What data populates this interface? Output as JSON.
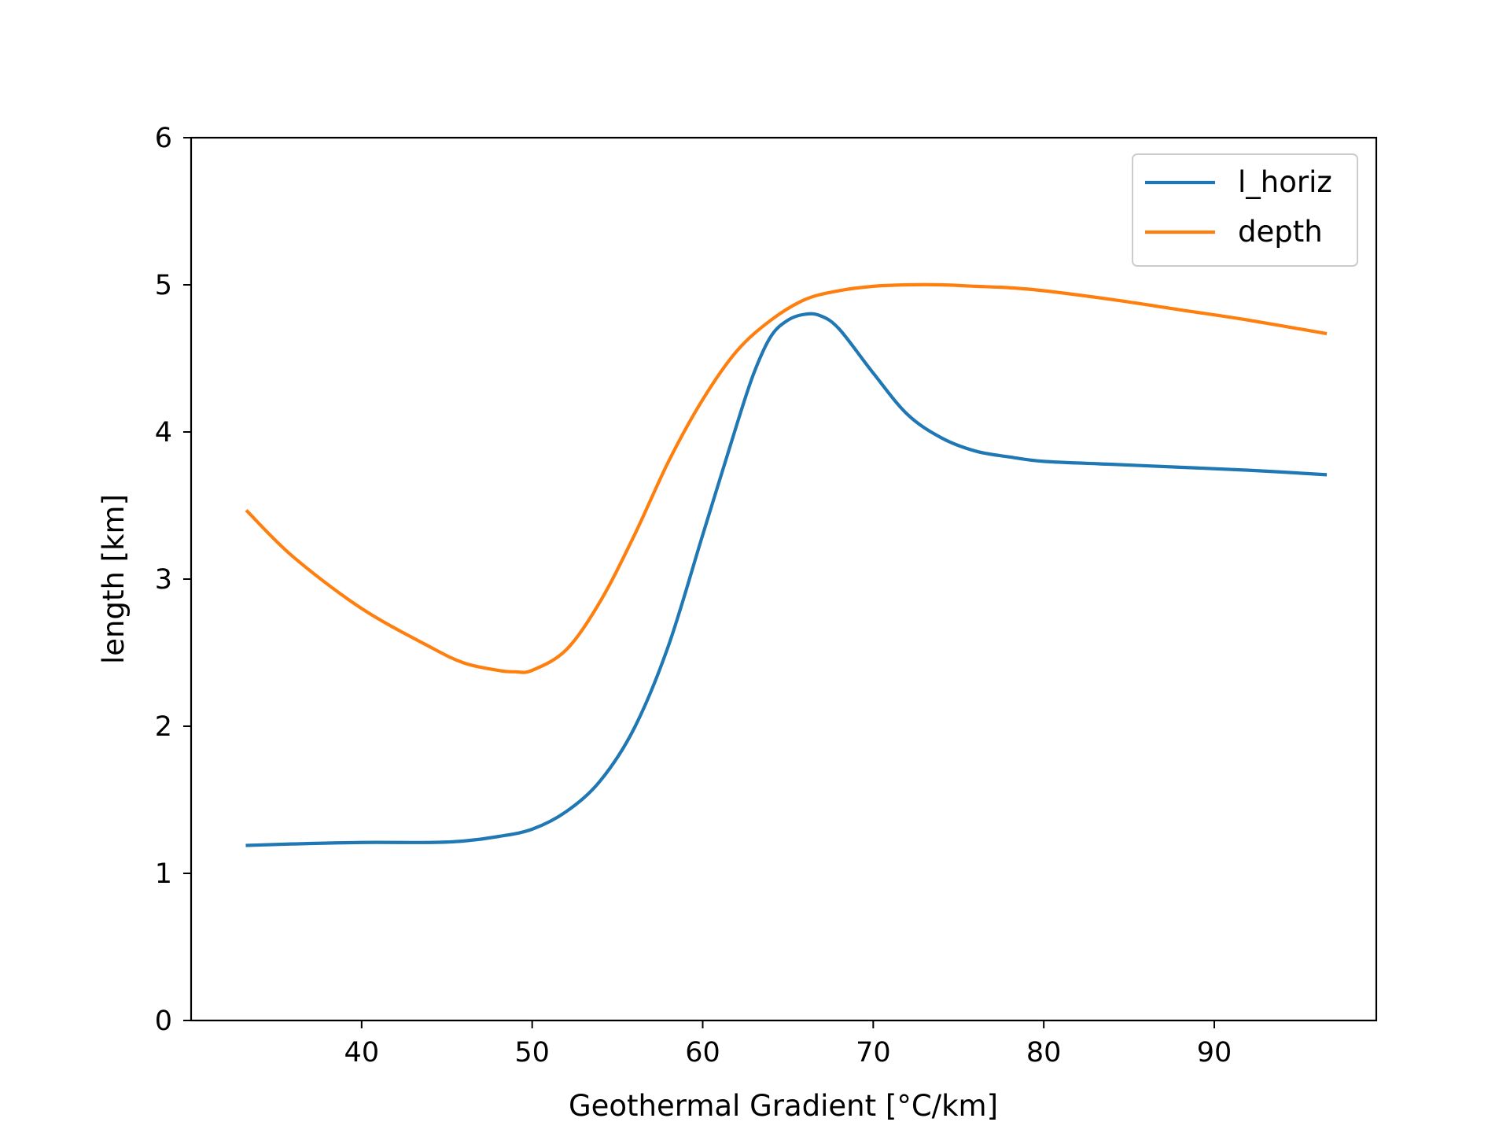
{
  "chart_data": {
    "type": "line",
    "title": "",
    "xlabel": "Geothermal Gradient [°C/km]",
    "ylabel": "length [km]",
    "xlim": [
      30,
      99.5
    ],
    "ylim": [
      0,
      6
    ],
    "xticks": [
      40,
      50,
      60,
      70,
      80,
      90
    ],
    "yticks": [
      0,
      1,
      2,
      3,
      4,
      5,
      6
    ],
    "grid": false,
    "legend_position": "top-right",
    "series": [
      {
        "name": "l_horiz",
        "color": "#1f77b4",
        "x": [
          33.3,
          36,
          40,
          44,
          46,
          48,
          50,
          52,
          54,
          56,
          58,
          60,
          62,
          63,
          64,
          65,
          66,
          66.9,
          68,
          70,
          72,
          74,
          76,
          78,
          80,
          84,
          88,
          92,
          96.5
        ],
        "y": [
          1.19,
          1.2,
          1.21,
          1.21,
          1.22,
          1.25,
          1.3,
          1.42,
          1.63,
          1.99,
          2.55,
          3.3,
          4.05,
          4.4,
          4.65,
          4.76,
          4.8,
          4.79,
          4.7,
          4.4,
          4.12,
          3.96,
          3.87,
          3.83,
          3.8,
          3.78,
          3.76,
          3.74,
          3.71
        ]
      },
      {
        "name": "depth",
        "color": "#ff7f0e",
        "x": [
          33.3,
          36,
          40,
          44,
          46,
          48,
          49,
          50,
          52,
          54,
          56,
          58,
          60,
          62,
          64,
          66,
          68,
          70,
          72,
          74,
          76,
          78,
          80,
          84,
          88,
          92,
          96.5
        ],
        "y": [
          3.46,
          3.15,
          2.8,
          2.54,
          2.43,
          2.38,
          2.37,
          2.38,
          2.52,
          2.85,
          3.3,
          3.8,
          4.22,
          4.55,
          4.76,
          4.9,
          4.96,
          4.99,
          5.0,
          5.0,
          4.99,
          4.98,
          4.96,
          4.9,
          4.83,
          4.76,
          4.67
        ]
      }
    ]
  }
}
